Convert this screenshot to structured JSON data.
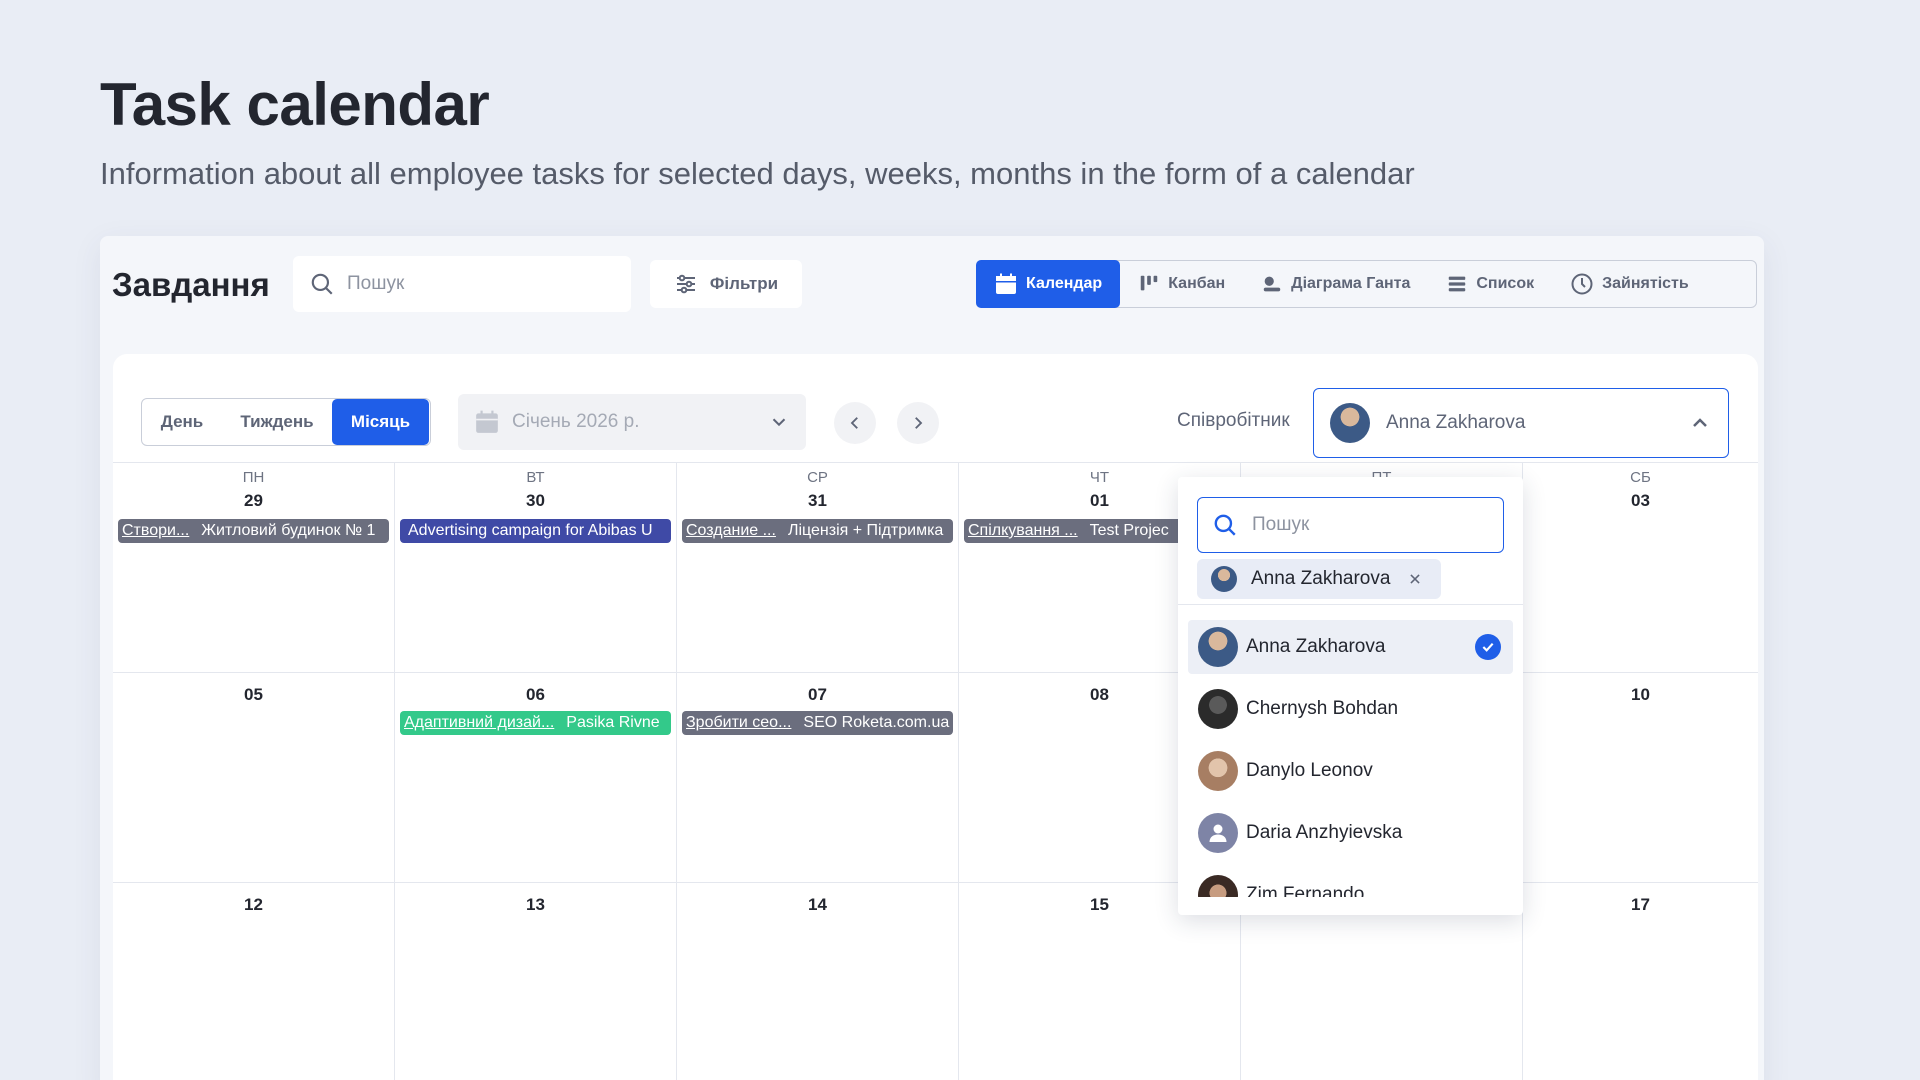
{
  "hero": {
    "title": "Task calendar",
    "subtitle": "Information about all employee tasks for selected days, weeks, months in the form of a calendar"
  },
  "header": {
    "title": "Завдання",
    "search_placeholder": "Пошук",
    "filters_label": "Фільтри",
    "view_tabs": [
      {
        "label": "Календар",
        "icon": "calendar-icon",
        "active": true
      },
      {
        "label": "Канбан",
        "icon": "kanban-icon",
        "active": false
      },
      {
        "label": "Діаграма Ганта",
        "icon": "gantt-icon",
        "active": false
      },
      {
        "label": "Список",
        "icon": "list-icon",
        "active": false
      },
      {
        "label": "Зайнятість",
        "icon": "clock-icon",
        "active": false
      }
    ]
  },
  "toolbar": {
    "period_tabs": [
      {
        "label": "День",
        "active": false
      },
      {
        "label": "Тиждень",
        "active": false
      },
      {
        "label": "Місяць",
        "active": true
      }
    ],
    "month_value": "Січень 2026 р.",
    "employee_label": "Співробітник",
    "employee_value": "Anna Zakharova"
  },
  "calendar": {
    "weekdays": [
      "ПН",
      "ВТ",
      "СР",
      "ЧТ",
      "ПТ",
      "СБ"
    ],
    "weeks": [
      [
        "29",
        "30",
        "31",
        "01",
        "",
        "03"
      ],
      [
        "05",
        "06",
        "07",
        "08",
        "",
        "10"
      ],
      [
        "12",
        "13",
        "14",
        "15",
        "",
        "17"
      ]
    ],
    "events": [
      {
        "week": 0,
        "day": 0,
        "task": "Створи...",
        "project": "Житловий будинок № 1",
        "color": "#6b6e7e"
      },
      {
        "week": 0,
        "day": 1,
        "task": "",
        "project": "Advertising campaign for Abibas U",
        "color": "#3f4aa6"
      },
      {
        "week": 0,
        "day": 2,
        "task": "Создание ...",
        "project": "Ліцензія + Підтримка",
        "color": "#6b6e7e"
      },
      {
        "week": 0,
        "day": 3,
        "task": "Спілкування ...",
        "project": "Test Projec",
        "color": "#6b6e7e"
      },
      {
        "week": 1,
        "day": 1,
        "task": "Адаптивний дизай...",
        "project": "Pasika Rivne",
        "color": "#33c98a"
      },
      {
        "week": 1,
        "day": 2,
        "task": "Зробити сео...",
        "project": "SEO Roketa.com.ua",
        "color": "#6b6e7e"
      }
    ]
  },
  "dropdown": {
    "search_placeholder": "Пошук",
    "chip_label": "Anna Zakharova",
    "items": [
      {
        "name": "Anna Zakharova",
        "selected": true,
        "avatar_color": "#3c5a86"
      },
      {
        "name": "Chernysh Bohdan",
        "selected": false,
        "avatar_color": "#2b2b2b"
      },
      {
        "name": "Danylo Leonov",
        "selected": false,
        "avatar_color": "#c7a58c"
      },
      {
        "name": "Daria Anzhyievska",
        "selected": false,
        "avatar_color": "#7e84a6"
      },
      {
        "name": "Zim Fernando",
        "selected": false,
        "avatar_color": "#3a2a24"
      }
    ]
  },
  "colors": {
    "accent": "#1f5ee8",
    "event_gray": "#6b6e7e",
    "event_blue": "#3f4aa6",
    "event_green": "#33c98a"
  }
}
